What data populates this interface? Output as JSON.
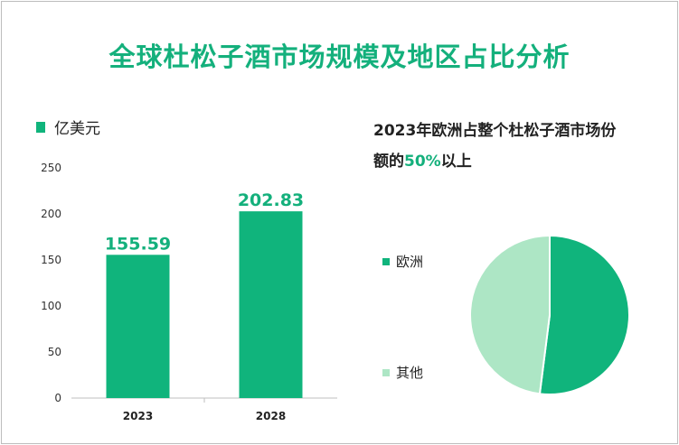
{
  "title": "全球杜松子酒市场规模及地区占比分析",
  "bar_legend": {
    "label": "亿美元",
    "color": "#10b47c"
  },
  "headline": {
    "prefix": "2023年欧洲占整个杜松子酒市场份",
    "line2_prefix": "额的",
    "highlight": "50%",
    "suffix": "以上"
  },
  "chart_data": [
    {
      "type": "bar",
      "categories": [
        "2023",
        "2028"
      ],
      "values": [
        155.59,
        202.83
      ],
      "data_labels": [
        "155.59",
        "202.83"
      ],
      "ylim": [
        0,
        250
      ],
      "yticks": [
        0,
        50,
        100,
        150,
        200,
        250
      ],
      "legend": "亿美元",
      "color": "#10b47c",
      "label_color": "#14b07c"
    },
    {
      "type": "pie",
      "labels": [
        "欧洲",
        "其他"
      ],
      "values": [
        52,
        48
      ],
      "colors": [
        "#10b47c",
        "#ade6c5"
      ]
    }
  ]
}
